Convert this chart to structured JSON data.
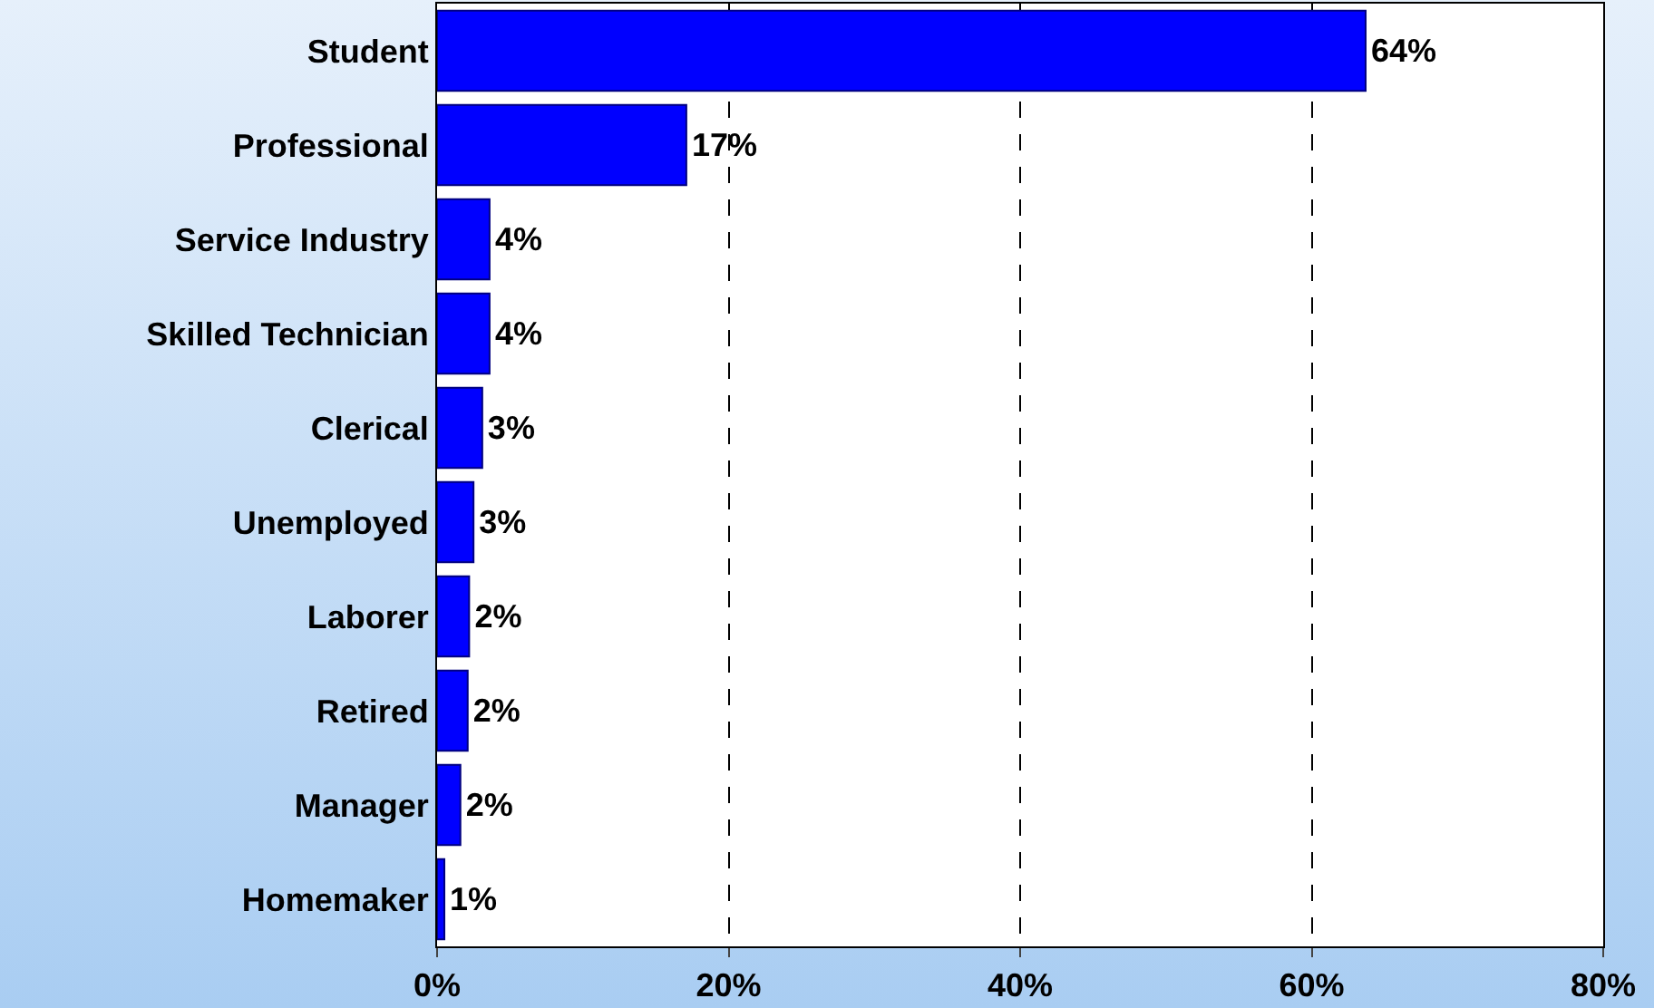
{
  "chart_data": {
    "type": "bar",
    "orientation": "horizontal",
    "categories": [
      "Student",
      "Professional",
      "Service Industry",
      "Skilled Technician",
      "Clerical",
      "Unemployed",
      "Laborer",
      "Retired",
      "Manager",
      "Homemaker"
    ],
    "values": [
      63.7,
      17.1,
      3.6,
      3.6,
      3.1,
      2.5,
      2.2,
      2.1,
      1.6,
      0.5
    ],
    "value_labels": [
      "64%",
      "17%",
      "4%",
      "4%",
      "3%",
      "3%",
      "2%",
      "2%",
      "2%",
      "1%"
    ],
    "color": "#0000ff",
    "xlim": [
      0,
      80
    ],
    "xticks": [
      {
        "value": 0,
        "label": "0%"
      },
      {
        "value": 20,
        "label": "20%"
      },
      {
        "value": 40,
        "label": "40%"
      },
      {
        "value": 60,
        "label": "60%"
      },
      {
        "value": 80,
        "label": "80%"
      }
    ],
    "grid": "x"
  }
}
